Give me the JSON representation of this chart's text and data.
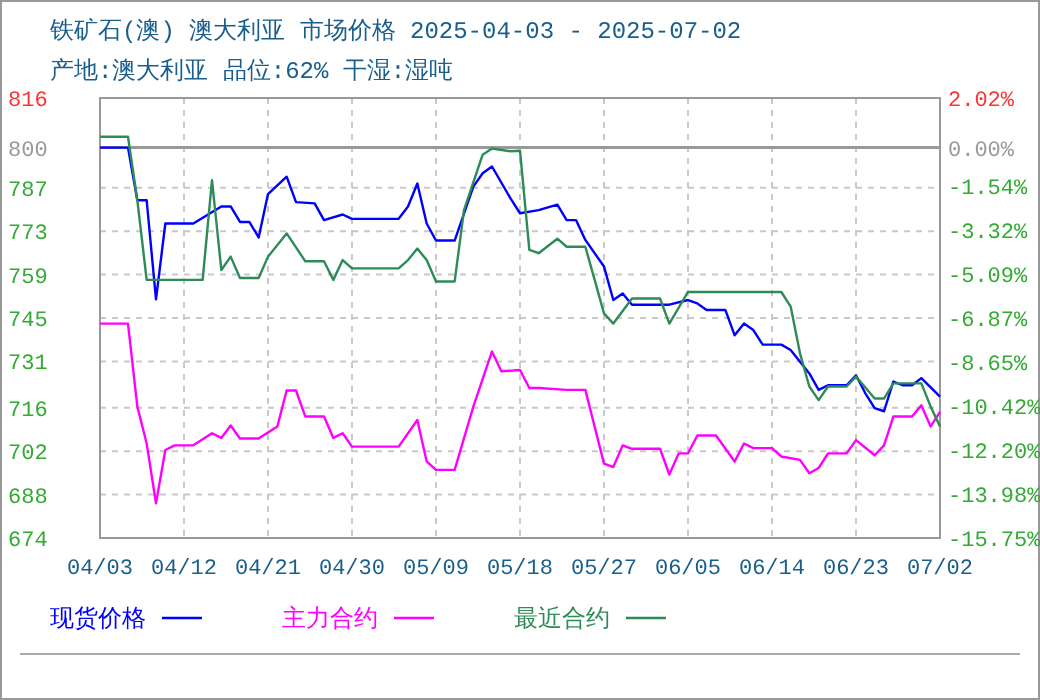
{
  "chart_data": {
    "type": "line",
    "title": "铁矿石(澳) 澳大利亚 市场价格 2025-04-03 - 2025-07-02",
    "subtitle": "产地:澳大利亚 品位:62% 干湿:湿吨",
    "xlim": [
      "2025-04-03",
      "2025-07-02"
    ],
    "xticks": [
      {
        "value": "2025-04-03",
        "label": "04/03"
      },
      {
        "value": "2025-04-12",
        "label": "04/12"
      },
      {
        "value": "2025-04-21",
        "label": "04/21"
      },
      {
        "value": "2025-04-30",
        "label": "04/30"
      },
      {
        "value": "2025-05-09",
        "label": "05/09"
      },
      {
        "value": "2025-05-18",
        "label": "05/18"
      },
      {
        "value": "2025-05-27",
        "label": "05/27"
      },
      {
        "value": "2025-06-05",
        "label": "06/05"
      },
      {
        "value": "2025-06-14",
        "label": "06/14"
      },
      {
        "value": "2025-06-23",
        "label": "06/23"
      },
      {
        "value": "2025-07-02",
        "label": "07/02"
      }
    ],
    "ylim": [
      674,
      816
    ],
    "yticks": [
      816,
      800,
      787,
      773,
      759,
      745,
      731,
      716,
      702,
      688,
      674
    ],
    "y2lim": [
      -15.75,
      2.02
    ],
    "y2ticks": [
      {
        "value": 2.02,
        "label": "2.02%"
      },
      {
        "value": 0,
        "label": "0.00%"
      },
      {
        "value": -1.54,
        "label": "-1.54%"
      },
      {
        "value": -3.32,
        "label": "-3.32%"
      },
      {
        "value": -5.09,
        "label": "-5.09%"
      },
      {
        "value": -6.87,
        "label": "-6.87%"
      },
      {
        "value": -8.65,
        "label": "-8.65%"
      },
      {
        "value": -10.42,
        "label": "-10.42%"
      },
      {
        "value": -12.2,
        "label": "-12.20%"
      },
      {
        "value": -13.98,
        "label": "-13.98%"
      },
      {
        "value": -15.75,
        "label": "-15.75%"
      }
    ],
    "ref_lines": [
      {
        "axis": "y",
        "value": 800,
        "color": "#999999"
      }
    ],
    "grid": true,
    "legend": "bottom",
    "series": [
      {
        "name": "现货价格",
        "color": "#0000ff",
        "x": [
          "2025-04-03",
          "2025-04-06",
          "2025-04-07",
          "2025-04-08",
          "2025-04-09",
          "2025-04-10",
          "2025-04-13",
          "2025-04-16",
          "2025-04-17",
          "2025-04-18",
          "2025-04-19",
          "2025-04-20",
          "2025-04-21",
          "2025-04-23",
          "2025-04-24",
          "2025-04-26",
          "2025-04-27",
          "2025-04-29",
          "2025-04-30",
          "2025-05-05",
          "2025-05-06",
          "2025-05-07",
          "2025-05-08",
          "2025-05-09",
          "2025-05-11",
          "2025-05-13",
          "2025-05-14",
          "2025-05-15",
          "2025-05-17",
          "2025-05-18",
          "2025-05-20",
          "2025-05-22",
          "2025-05-23",
          "2025-05-24",
          "2025-05-25",
          "2025-05-27",
          "2025-05-28",
          "2025-05-29",
          "2025-05-30",
          "2025-06-03",
          "2025-06-05",
          "2025-06-06",
          "2025-06-07",
          "2025-06-09",
          "2025-06-10",
          "2025-06-11",
          "2025-06-12",
          "2025-06-13",
          "2025-06-15",
          "2025-06-16",
          "2025-06-18",
          "2025-06-19",
          "2025-06-20",
          "2025-06-22",
          "2025-06-23",
          "2025-06-24",
          "2025-06-25",
          "2025-06-26",
          "2025-06-27",
          "2025-06-28",
          "2025-06-29",
          "2025-06-30",
          "2025-07-02"
        ],
        "values": [
          800,
          800,
          783,
          783,
          751,
          775.5,
          775.5,
          781,
          781,
          776,
          776,
          771,
          785,
          790.6,
          782.4,
          782,
          776.6,
          778.4,
          777,
          777,
          781,
          788.4,
          775.5,
          770,
          770,
          787.4,
          791.7,
          793.9,
          783.5,
          778.8,
          779.8,
          781.6,
          776.6,
          776.6,
          770.2,
          761.6,
          750.8,
          752.9,
          749.3,
          749.3,
          750.8,
          749.7,
          747.6,
          747.6,
          739.4,
          743.2,
          741.1,
          736.4,
          736.4,
          734.7,
          727.1,
          721.8,
          723.3,
          723.3,
          726.5,
          720.7,
          715.9,
          714.9,
          724.5,
          723.3,
          723.3,
          725.6,
          719.6
        ]
      },
      {
        "name": "主力合约",
        "color": "#ff00ff",
        "x": [
          "2025-04-03",
          "2025-04-06",
          "2025-04-07",
          "2025-04-08",
          "2025-04-09",
          "2025-04-10",
          "2025-04-11",
          "2025-04-13",
          "2025-04-15",
          "2025-04-16",
          "2025-04-17",
          "2025-04-18",
          "2025-04-20",
          "2025-04-22",
          "2025-04-23",
          "2025-04-24",
          "2025-04-25",
          "2025-04-27",
          "2025-04-28",
          "2025-04-29",
          "2025-04-30",
          "2025-05-05",
          "2025-05-07",
          "2025-05-08",
          "2025-05-09",
          "2025-05-11",
          "2025-05-13",
          "2025-05-15",
          "2025-05-16",
          "2025-05-18",
          "2025-05-19",
          "2025-05-20",
          "2025-05-23",
          "2025-05-25",
          "2025-05-27",
          "2025-05-28",
          "2025-05-29",
          "2025-05-30",
          "2025-06-02",
          "2025-06-03",
          "2025-06-04",
          "2025-06-05",
          "2025-06-06",
          "2025-06-08",
          "2025-06-10",
          "2025-06-11",
          "2025-06-12",
          "2025-06-14",
          "2025-06-15",
          "2025-06-17",
          "2025-06-18",
          "2025-06-19",
          "2025-06-20",
          "2025-06-22",
          "2025-06-23",
          "2025-06-25",
          "2025-06-26",
          "2025-06-27",
          "2025-06-29",
          "2025-06-30",
          "2025-07-01",
          "2025-07-02"
        ],
        "values": [
          743.2,
          743.2,
          716.4,
          704.5,
          685.2,
          702.4,
          703.9,
          703.9,
          707.8,
          706.3,
          710.3,
          706.1,
          706.1,
          710,
          721.6,
          721.6,
          713.2,
          713.2,
          706.3,
          707.8,
          703.5,
          703.5,
          712.1,
          698.7,
          696,
          696,
          716.4,
          734.2,
          727.8,
          728.2,
          722.4,
          722.4,
          721.8,
          721.8,
          698,
          696.9,
          703.9,
          702.8,
          702.8,
          694.5,
          701.3,
          701.3,
          707.1,
          707.1,
          698.7,
          704.5,
          703,
          703,
          700.3,
          699.2,
          694.9,
          696.6,
          701.3,
          701.3,
          705.6,
          700.7,
          703.9,
          713.2,
          713.2,
          716.8,
          710,
          714.7
        ]
      },
      {
        "name": "最近合约",
        "color": "#2e8b57",
        "x": [
          "2025-04-03",
          "2025-04-06",
          "2025-04-07",
          "2025-04-08",
          "2025-04-14",
          "2025-04-15",
          "2025-04-16",
          "2025-04-17",
          "2025-04-18",
          "2025-04-20",
          "2025-04-21",
          "2025-04-23",
          "2025-04-25",
          "2025-04-27",
          "2025-04-28",
          "2025-04-29",
          "2025-04-30",
          "2025-05-05",
          "2025-05-06",
          "2025-05-07",
          "2025-05-08",
          "2025-05-09",
          "2025-05-11",
          "2025-05-12",
          "2025-05-14",
          "2025-05-15",
          "2025-05-17",
          "2025-05-18",
          "2025-05-19",
          "2025-05-20",
          "2025-05-22",
          "2025-05-23",
          "2025-05-25",
          "2025-05-26",
          "2025-05-27",
          "2025-05-28",
          "2025-05-30",
          "2025-06-02",
          "2025-06-03",
          "2025-06-05",
          "2025-06-15",
          "2025-06-16",
          "2025-06-17",
          "2025-06-18",
          "2025-06-19",
          "2025-06-20",
          "2025-06-22",
          "2025-06-23",
          "2025-06-25",
          "2025-06-26",
          "2025-06-27",
          "2025-06-30",
          "2025-07-01",
          "2025-07-02"
        ],
        "values": [
          803.5,
          803.5,
          783,
          757.3,
          757.3,
          789.5,
          760.5,
          764.8,
          757.9,
          757.9,
          764.8,
          772.3,
          763.3,
          763.3,
          757.3,
          763.7,
          761,
          761,
          763.7,
          767.4,
          763.7,
          756.8,
          756.8,
          779.8,
          797.7,
          799.7,
          798.8,
          799,
          767,
          765.9,
          770.6,
          768,
          768,
          757.3,
          746.5,
          743.2,
          751.3,
          751.3,
          743.2,
          753.4,
          753.4,
          748.7,
          733.6,
          722.9,
          718.5,
          722.9,
          722.9,
          726.1,
          719,
          719,
          723.9,
          723.9,
          716.4,
          710
        ]
      }
    ]
  }
}
